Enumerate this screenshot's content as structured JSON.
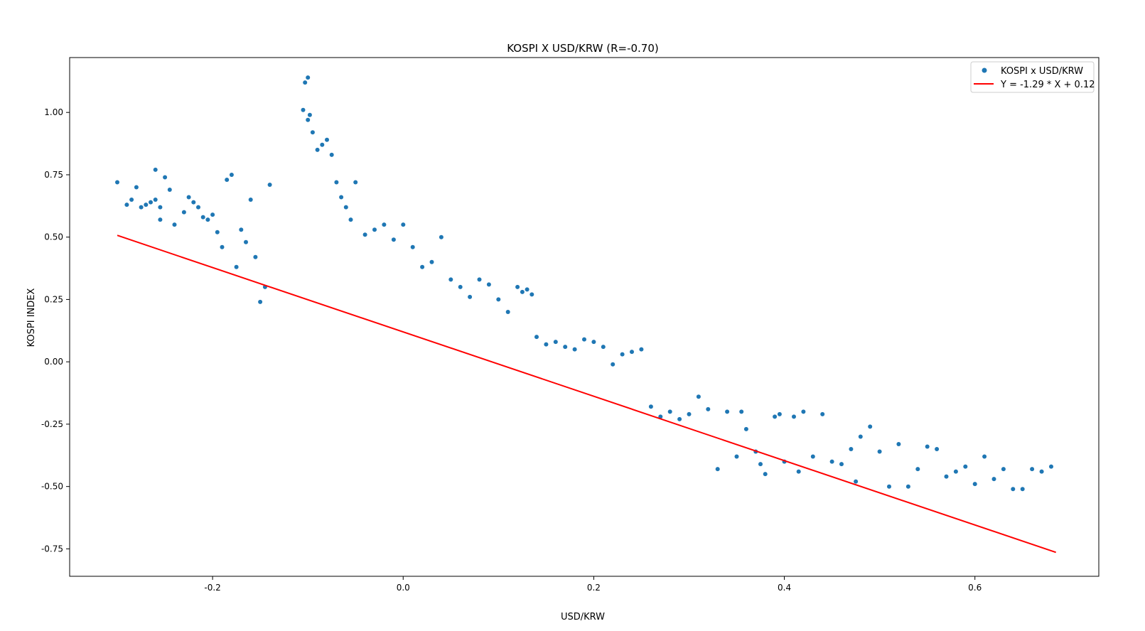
{
  "chart_data": {
    "type": "scatter",
    "title": "KOSPI X USD/KRW (R=-0.70)",
    "xlabel": "USD/KRW",
    "ylabel": "KOSPI INDEX",
    "xlim": [
      -0.35,
      0.73
    ],
    "ylim": [
      -0.86,
      1.22
    ],
    "xticks": [
      -0.2,
      0.0,
      0.2,
      0.4,
      0.6
    ],
    "xtick_labels": [
      "-0.2",
      "0.0",
      "0.2",
      "0.4",
      "0.6"
    ],
    "yticks": [
      -0.75,
      -0.5,
      -0.25,
      0.0,
      0.25,
      0.5,
      0.75,
      1.0
    ],
    "ytick_labels": [
      "-0.75",
      "-0.50",
      "-0.25",
      "0.00",
      "0.25",
      "0.50",
      "0.75",
      "1.00"
    ],
    "grid": false,
    "legend_position": "top-right",
    "colors": {
      "points": "#1f77b4",
      "fit": "#ff0000"
    },
    "series": [
      {
        "name": "KOSPI x USD/KRW",
        "kind": "scatter",
        "points": [
          [
            -0.3,
            0.72
          ],
          [
            -0.29,
            0.63
          ],
          [
            -0.285,
            0.65
          ],
          [
            -0.28,
            0.7
          ],
          [
            -0.275,
            0.62
          ],
          [
            -0.27,
            0.63
          ],
          [
            -0.265,
            0.64
          ],
          [
            -0.26,
            0.65
          ],
          [
            -0.26,
            0.77
          ],
          [
            -0.255,
            0.57
          ],
          [
            -0.255,
            0.62
          ],
          [
            -0.25,
            0.74
          ],
          [
            -0.245,
            0.69
          ],
          [
            -0.24,
            0.55
          ],
          [
            -0.23,
            0.6
          ],
          [
            -0.225,
            0.66
          ],
          [
            -0.22,
            0.64
          ],
          [
            -0.215,
            0.62
          ],
          [
            -0.21,
            0.58
          ],
          [
            -0.205,
            0.57
          ],
          [
            -0.2,
            0.59
          ],
          [
            -0.195,
            0.52
          ],
          [
            -0.19,
            0.46
          ],
          [
            -0.185,
            0.73
          ],
          [
            -0.18,
            0.75
          ],
          [
            -0.175,
            0.38
          ],
          [
            -0.17,
            0.53
          ],
          [
            -0.165,
            0.48
          ],
          [
            -0.16,
            0.65
          ],
          [
            -0.155,
            0.42
          ],
          [
            -0.15,
            0.24
          ],
          [
            -0.145,
            0.3
          ],
          [
            -0.14,
            0.71
          ],
          [
            -0.1,
            1.14
          ],
          [
            -0.103,
            1.12
          ],
          [
            -0.105,
            1.01
          ],
          [
            -0.1,
            0.97
          ],
          [
            -0.098,
            0.99
          ],
          [
            -0.095,
            0.92
          ],
          [
            -0.09,
            0.85
          ],
          [
            -0.085,
            0.87
          ],
          [
            -0.08,
            0.89
          ],
          [
            -0.075,
            0.83
          ],
          [
            -0.07,
            0.72
          ],
          [
            -0.065,
            0.66
          ],
          [
            -0.06,
            0.62
          ],
          [
            -0.055,
            0.57
          ],
          [
            -0.05,
            0.72
          ],
          [
            -0.04,
            0.51
          ],
          [
            -0.03,
            0.53
          ],
          [
            -0.02,
            0.55
          ],
          [
            -0.01,
            0.49
          ],
          [
            0.0,
            0.55
          ],
          [
            0.01,
            0.46
          ],
          [
            0.02,
            0.38
          ],
          [
            0.03,
            0.4
          ],
          [
            0.04,
            0.5
          ],
          [
            0.05,
            0.33
          ],
          [
            0.06,
            0.3
          ],
          [
            0.07,
            0.26
          ],
          [
            0.08,
            0.33
          ],
          [
            0.09,
            0.31
          ],
          [
            0.1,
            0.25
          ],
          [
            0.11,
            0.2
          ],
          [
            0.12,
            0.3
          ],
          [
            0.125,
            0.28
          ],
          [
            0.13,
            0.29
          ],
          [
            0.135,
            0.27
          ],
          [
            0.14,
            0.1
          ],
          [
            0.15,
            0.07
          ],
          [
            0.16,
            0.08
          ],
          [
            0.17,
            0.06
          ],
          [
            0.18,
            0.05
          ],
          [
            0.19,
            0.09
          ],
          [
            0.2,
            0.08
          ],
          [
            0.21,
            0.06
          ],
          [
            0.22,
            -0.01
          ],
          [
            0.23,
            0.03
          ],
          [
            0.24,
            0.04
          ],
          [
            0.25,
            0.05
          ],
          [
            0.26,
            -0.18
          ],
          [
            0.27,
            -0.22
          ],
          [
            0.28,
            -0.2
          ],
          [
            0.29,
            -0.23
          ],
          [
            0.3,
            -0.21
          ],
          [
            0.31,
            -0.14
          ],
          [
            0.32,
            -0.19
          ],
          [
            0.33,
            -0.43
          ],
          [
            0.34,
            -0.2
          ],
          [
            0.35,
            -0.38
          ],
          [
            0.355,
            -0.2
          ],
          [
            0.36,
            -0.27
          ],
          [
            0.37,
            -0.36
          ],
          [
            0.375,
            -0.41
          ],
          [
            0.38,
            -0.45
          ],
          [
            0.39,
            -0.22
          ],
          [
            0.395,
            -0.21
          ],
          [
            0.4,
            -0.4
          ],
          [
            0.41,
            -0.22
          ],
          [
            0.415,
            -0.44
          ],
          [
            0.42,
            -0.2
          ],
          [
            0.43,
            -0.38
          ],
          [
            0.44,
            -0.21
          ],
          [
            0.45,
            -0.4
          ],
          [
            0.46,
            -0.41
          ],
          [
            0.47,
            -0.35
          ],
          [
            0.475,
            -0.48
          ],
          [
            0.48,
            -0.3
          ],
          [
            0.49,
            -0.26
          ],
          [
            0.5,
            -0.36
          ],
          [
            0.51,
            -0.5
          ],
          [
            0.52,
            -0.33
          ],
          [
            0.53,
            -0.5
          ],
          [
            0.54,
            -0.43
          ],
          [
            0.55,
            -0.34
          ],
          [
            0.56,
            -0.35
          ],
          [
            0.57,
            -0.46
          ],
          [
            0.58,
            -0.44
          ],
          [
            0.59,
            -0.42
          ],
          [
            0.6,
            -0.49
          ],
          [
            0.61,
            -0.38
          ],
          [
            0.62,
            -0.47
          ],
          [
            0.63,
            -0.43
          ],
          [
            0.64,
            -0.51
          ],
          [
            0.65,
            -0.51
          ],
          [
            0.66,
            -0.43
          ],
          [
            0.67,
            -0.44
          ],
          [
            0.68,
            -0.42
          ]
        ]
      },
      {
        "name": "Y = -1.29 * X + 0.12",
        "kind": "line",
        "x": [
          -0.3,
          0.685
        ],
        "y": [
          0.507,
          -0.764
        ]
      }
    ]
  }
}
